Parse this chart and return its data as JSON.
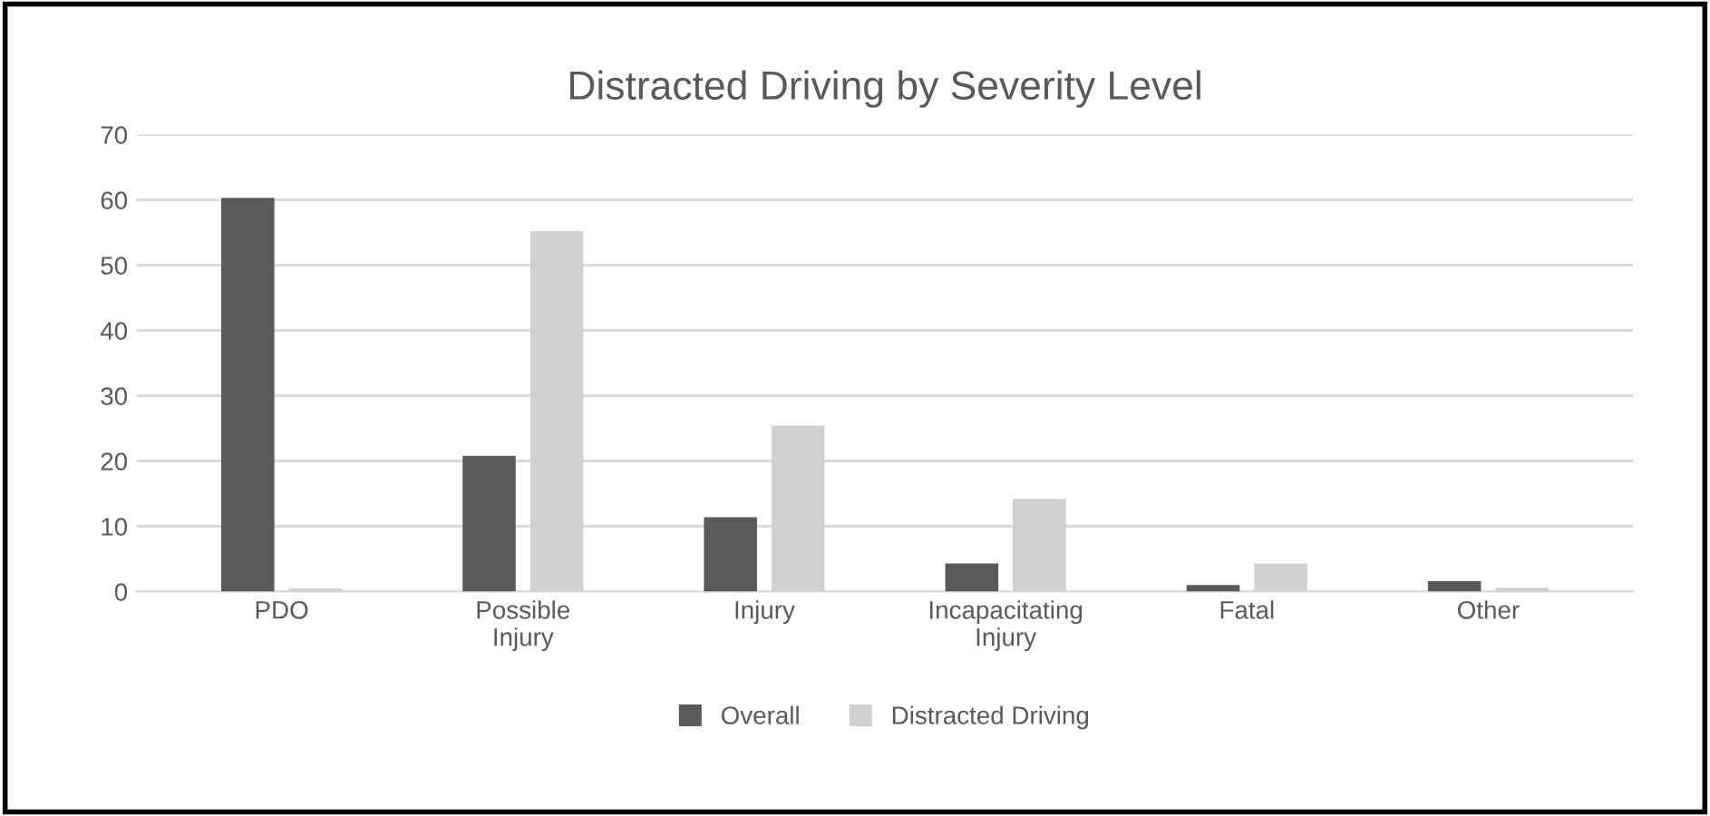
{
  "chart_data": {
    "type": "bar",
    "title": "Distracted Driving by Severity Level",
    "categories": [
      "PDO",
      "Possible\nInjury",
      "Injury",
      "Incapacitating\nInjury",
      "Fatal",
      "Other"
    ],
    "series": [
      {
        "name": "Overall",
        "color": "#595959",
        "values": [
          60.3,
          20.8,
          11.4,
          4.3,
          1.0,
          1.6
        ]
      },
      {
        "name": "Distracted Driving",
        "color": "#d0d0d0",
        "values": [
          0.5,
          55.2,
          25.4,
          14.2,
          4.3,
          0.6
        ]
      }
    ],
    "ylim": [
      0,
      70
    ],
    "yticks": [
      0,
      10,
      20,
      30,
      40,
      50,
      60,
      70
    ],
    "grid": "y",
    "legend": "bottom"
  }
}
